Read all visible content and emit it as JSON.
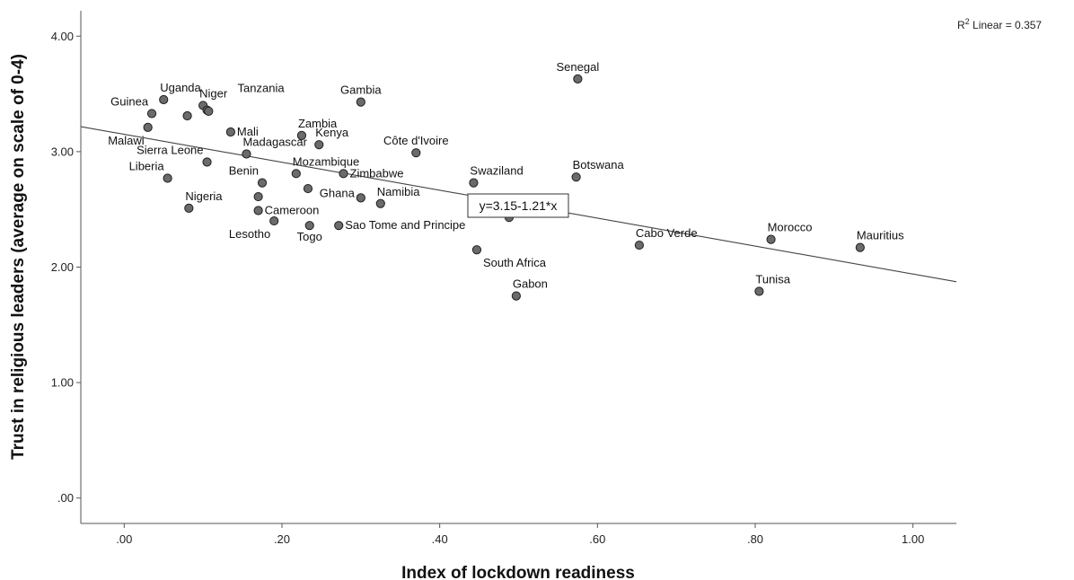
{
  "chart_data": {
    "type": "scatter",
    "xlabel": "Index of lockdown readiness",
    "ylabel": "Trust in religious leaders (average on scale of 0-4)",
    "xlim": [
      -0.055,
      1.055
    ],
    "ylim": [
      -0.22,
      4.22
    ],
    "x_ticks": [
      {
        "value": 0.0,
        "label": ".00"
      },
      {
        "value": 0.2,
        "label": ".20"
      },
      {
        "value": 0.4,
        "label": ".40"
      },
      {
        "value": 0.6,
        "label": ".60"
      },
      {
        "value": 0.8,
        "label": ".80"
      },
      {
        "value": 1.0,
        "label": "1.00"
      }
    ],
    "y_ticks": [
      {
        "value": 0.0,
        "label": ".00"
      },
      {
        "value": 1.0,
        "label": "1.00"
      },
      {
        "value": 2.0,
        "label": "2.00"
      },
      {
        "value": 3.0,
        "label": "3.00"
      },
      {
        "value": 4.0,
        "label": "4.00"
      }
    ],
    "grid": false,
    "fit_line": {
      "intercept": 3.15,
      "slope": -1.21,
      "equation_label": "y=3.15-1.21*x",
      "r2_prefix": "R",
      "r2_sup": "2",
      "r2_text": " Linear = 0.357"
    },
    "marker_color": "#6b6b6b",
    "points": [
      {
        "name": "Guinea",
        "x": 0.035,
        "y": 3.33,
        "label_pos": "upper-left"
      },
      {
        "name": "Uganda",
        "x": 0.05,
        "y": 3.45,
        "label_pos": "upper-right"
      },
      {
        "name": "Niger",
        "x": 0.1,
        "y": 3.4,
        "label_pos": "upper-right"
      },
      {
        "name": "",
        "x": 0.08,
        "y": 3.31
      },
      {
        "name": "Tanzania",
        "x": 0.105,
        "y": 3.36,
        "label_pos": "upper-right-far"
      },
      {
        "name": "",
        "x": 0.107,
        "y": 3.35
      },
      {
        "name": "Malawi",
        "x": 0.03,
        "y": 3.21,
        "label_pos": "lower-left"
      },
      {
        "name": "Sierra Leone",
        "x": 0.105,
        "y": 2.91,
        "label_pos": "upper-left"
      },
      {
        "name": "Mali",
        "x": 0.135,
        "y": 3.17,
        "label_pos": "right"
      },
      {
        "name": "Madagascar",
        "x": 0.155,
        "y": 2.98,
        "label_pos": "upper-right"
      },
      {
        "name": "Liberia",
        "x": 0.055,
        "y": 2.77,
        "label_pos": "upper-left"
      },
      {
        "name": "Benin",
        "x": 0.175,
        "y": 2.73,
        "label_pos": "upper-left"
      },
      {
        "name": "",
        "x": 0.17,
        "y": 2.61
      },
      {
        "name": "Cameroon",
        "x": 0.17,
        "y": 2.49,
        "label_pos": "right"
      },
      {
        "name": "Nigeria",
        "x": 0.082,
        "y": 2.51,
        "label_pos": "upper-right"
      },
      {
        "name": "Lesotho",
        "x": 0.19,
        "y": 2.4,
        "label_pos": "lower-left"
      },
      {
        "name": "Zambia",
        "x": 0.225,
        "y": 3.14,
        "label_pos": "upper-right"
      },
      {
        "name": "Kenya",
        "x": 0.247,
        "y": 3.06,
        "label_pos": "upper-right"
      },
      {
        "name": "Mozambique",
        "x": 0.218,
        "y": 2.81,
        "label_pos": "upper-right"
      },
      {
        "name": "",
        "x": 0.233,
        "y": 2.68
      },
      {
        "name": "Zimbabwe",
        "x": 0.278,
        "y": 2.81,
        "label_pos": "right"
      },
      {
        "name": "Togo",
        "x": 0.235,
        "y": 2.36,
        "label_pos": "lower"
      },
      {
        "name": "Ghana",
        "x": 0.3,
        "y": 2.6,
        "label_pos": "left"
      },
      {
        "name": "Sao Tome and Principe",
        "x": 0.272,
        "y": 2.36,
        "label_pos": "right"
      },
      {
        "name": "Gambia",
        "x": 0.3,
        "y": 3.43,
        "label_pos": "upper"
      },
      {
        "name": "Namibia",
        "x": 0.325,
        "y": 2.55,
        "label_pos": "upper-right"
      },
      {
        "name": "Côte d'Ivoire",
        "x": 0.37,
        "y": 2.99,
        "label_pos": "upper"
      },
      {
        "name": "Swaziland",
        "x": 0.443,
        "y": 2.73,
        "label_pos": "upper-right"
      },
      {
        "name": "",
        "x": 0.488,
        "y": 2.43
      },
      {
        "name": "South Africa",
        "x": 0.447,
        "y": 2.15,
        "label_pos": "lower-right"
      },
      {
        "name": "Gabon",
        "x": 0.497,
        "y": 1.75,
        "label_pos": "upper-right"
      },
      {
        "name": "Senegal",
        "x": 0.575,
        "y": 3.63,
        "label_pos": "upper"
      },
      {
        "name": "Botswana",
        "x": 0.573,
        "y": 2.78,
        "label_pos": "upper-right"
      },
      {
        "name": "Cabo Verde",
        "x": 0.653,
        "y": 2.19,
        "label_pos": "upper-right"
      },
      {
        "name": "Morocco",
        "x": 0.82,
        "y": 2.24,
        "label_pos": "upper-right"
      },
      {
        "name": "Tunisa",
        "x": 0.805,
        "y": 1.79,
        "label_pos": "upper-right"
      },
      {
        "name": "Mauritius",
        "x": 0.933,
        "y": 2.17,
        "label_pos": "upper-right"
      }
    ]
  }
}
